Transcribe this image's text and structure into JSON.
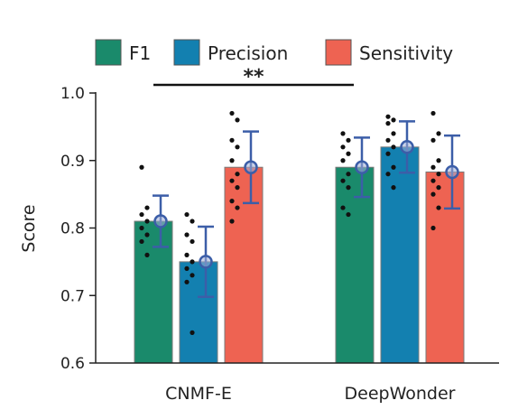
{
  "chart_data": {
    "type": "bar",
    "categories": [
      "CNMF-E",
      "DeepWonder"
    ],
    "series": [
      {
        "name": "F1",
        "color": "#1a8a6b",
        "values": [
          0.81,
          0.89
        ],
        "error": [
          0.038,
          0.044
        ],
        "points": [
          [
            0.89,
            0.83,
            0.82,
            0.81,
            0.8,
            0.79,
            0.78,
            0.76
          ],
          [
            0.94,
            0.93,
            0.92,
            0.91,
            0.9,
            0.88,
            0.87,
            0.86,
            0.83,
            0.82
          ]
        ]
      },
      {
        "name": "Precision",
        "color": "#1380b0",
        "values": [
          0.75,
          0.92
        ],
        "error": [
          0.052,
          0.038
        ],
        "points": [
          [
            0.82,
            0.81,
            0.79,
            0.78,
            0.76,
            0.75,
            0.74,
            0.73,
            0.72,
            0.645
          ],
          [
            0.965,
            0.96,
            0.955,
            0.94,
            0.93,
            0.92,
            0.91,
            0.89,
            0.88,
            0.86
          ]
        ]
      },
      {
        "name": "Sensitivity",
        "color": "#ee6352",
        "values": [
          0.89,
          0.883
        ],
        "error": [
          0.053,
          0.054
        ],
        "points": [
          [
            0.97,
            0.96,
            0.93,
            0.92,
            0.9,
            0.88,
            0.87,
            0.86,
            0.84,
            0.83,
            0.81
          ],
          [
            0.97,
            0.94,
            0.93,
            0.9,
            0.89,
            0.88,
            0.87,
            0.86,
            0.85,
            0.83,
            0.8
          ]
        ]
      }
    ],
    "mean_marker_color": "#3c5ea8",
    "ylabel": "Score",
    "ylim": [
      0.6,
      1.0
    ],
    "yticks": [
      "0.6",
      "0.7",
      "0.8",
      "0.9",
      "1.0"
    ],
    "legend_position": "top",
    "significance": {
      "label": "**",
      "from": "CNMF-E",
      "to": "DeepWonder"
    },
    "grid": false
  }
}
